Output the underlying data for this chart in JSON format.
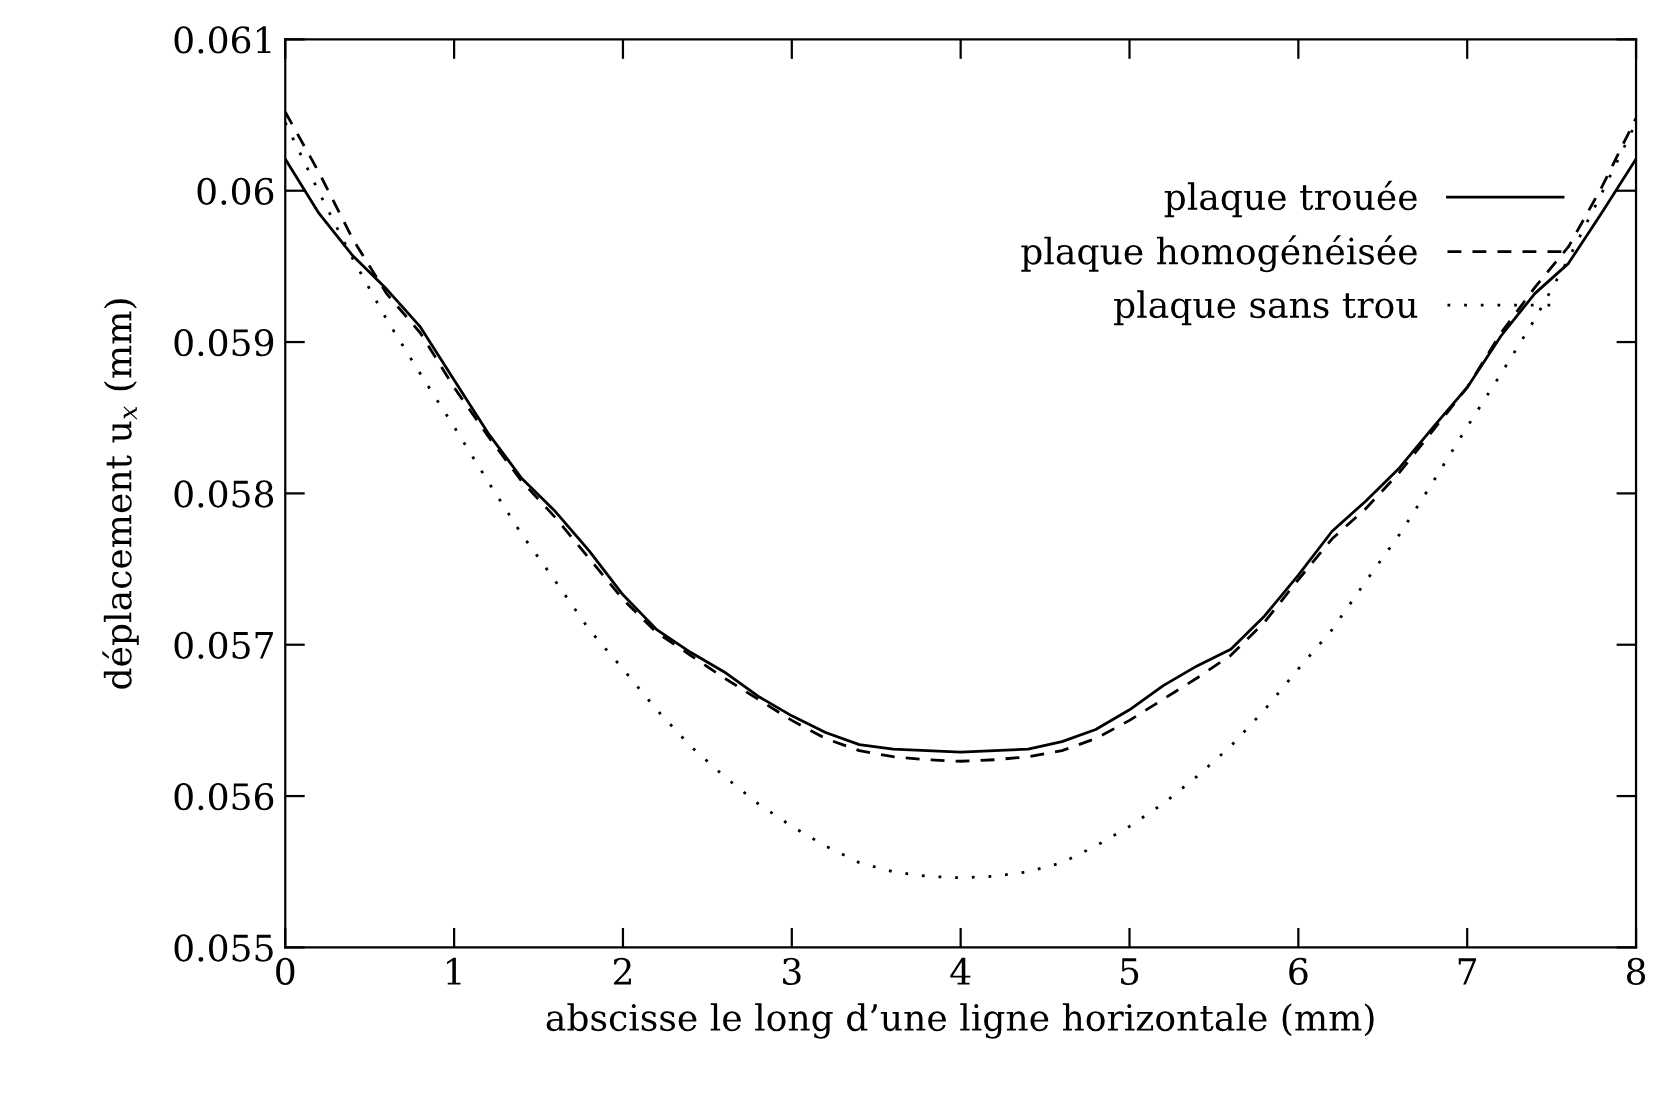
{
  "chart_data": {
    "type": "line",
    "xlabel": "abscisse le long d’une ligne horizontale (mm)",
    "ylabel": "déplacement u$_{x}$ (mm)",
    "x": [
      0,
      0.2,
      0.4,
      0.6,
      0.8,
      1.0,
      1.2,
      1.4,
      1.6,
      1.8,
      2.0,
      2.2,
      2.4,
      2.6,
      2.8,
      3.0,
      3.2,
      3.4,
      3.6,
      3.8,
      4.0,
      4.2,
      4.4,
      4.6,
      4.8,
      5.0,
      5.2,
      5.4,
      5.6,
      5.8,
      6.0,
      6.2,
      6.4,
      6.6,
      6.8,
      7.0,
      7.2,
      7.4,
      7.6,
      7.8,
      8.0
    ],
    "series": [
      {
        "name": "plaque trouée",
        "color": "#000000",
        "line_style": "solid",
        "values": [
          0.06021,
          0.05985,
          0.05957,
          0.05935,
          0.0591,
          0.05875,
          0.0584,
          0.0581,
          0.05788,
          0.05762,
          0.05733,
          0.0571,
          0.05695,
          0.05682,
          0.05666,
          0.05653,
          0.05642,
          0.05634,
          0.05631,
          0.0563,
          0.05629,
          0.0563,
          0.05631,
          0.05636,
          0.05644,
          0.05657,
          0.05673,
          0.05686,
          0.05697,
          0.05719,
          0.05746,
          0.05775,
          0.05795,
          0.05817,
          0.05844,
          0.0587,
          0.05904,
          0.05932,
          0.05952,
          0.05986,
          0.06021
        ]
      },
      {
        "name": "plaque homogénéisée",
        "color": "#000000",
        "line_style": "dashed",
        "values": [
          0.06052,
          0.06012,
          0.05968,
          0.05932,
          0.05906,
          0.0587,
          0.05838,
          0.05808,
          0.05784,
          0.05757,
          0.0573,
          0.05708,
          0.05693,
          0.05678,
          0.05664,
          0.0565,
          0.05638,
          0.0563,
          0.05626,
          0.05624,
          0.05623,
          0.05624,
          0.05626,
          0.0563,
          0.05638,
          0.0565,
          0.05664,
          0.05678,
          0.05693,
          0.05715,
          0.05743,
          0.0577,
          0.0579,
          0.05814,
          0.05842,
          0.0587,
          0.05906,
          0.05936,
          0.05963,
          0.06003,
          0.06048
        ]
      },
      {
        "name": "plaque sans trou",
        "color": "#000000",
        "line_style": "dotted",
        "values": [
          0.06045,
          0.05999,
          0.05955,
          0.05915,
          0.05879,
          0.05844,
          0.05808,
          0.05773,
          0.05742,
          0.0571,
          0.05684,
          0.05657,
          0.05633,
          0.05613,
          0.05595,
          0.0558,
          0.05567,
          0.05556,
          0.0555,
          0.05547,
          0.05546,
          0.05547,
          0.0555,
          0.05556,
          0.05567,
          0.0558,
          0.05595,
          0.05613,
          0.05633,
          0.05657,
          0.05684,
          0.0571,
          0.05742,
          0.05773,
          0.05808,
          0.05844,
          0.05879,
          0.05915,
          0.05955,
          0.05999,
          0.06045
        ]
      }
    ],
    "xlim": [
      0,
      8
    ],
    "xticks": [
      0,
      1,
      2,
      3,
      4,
      5,
      6,
      7,
      8
    ],
    "ylim": [
      0.055,
      0.061
    ],
    "yticks": [
      0.055,
      0.056,
      0.057,
      0.058,
      0.059,
      0.06,
      0.061
    ],
    "grid": false,
    "legend": "top right",
    "marker": "none"
  }
}
